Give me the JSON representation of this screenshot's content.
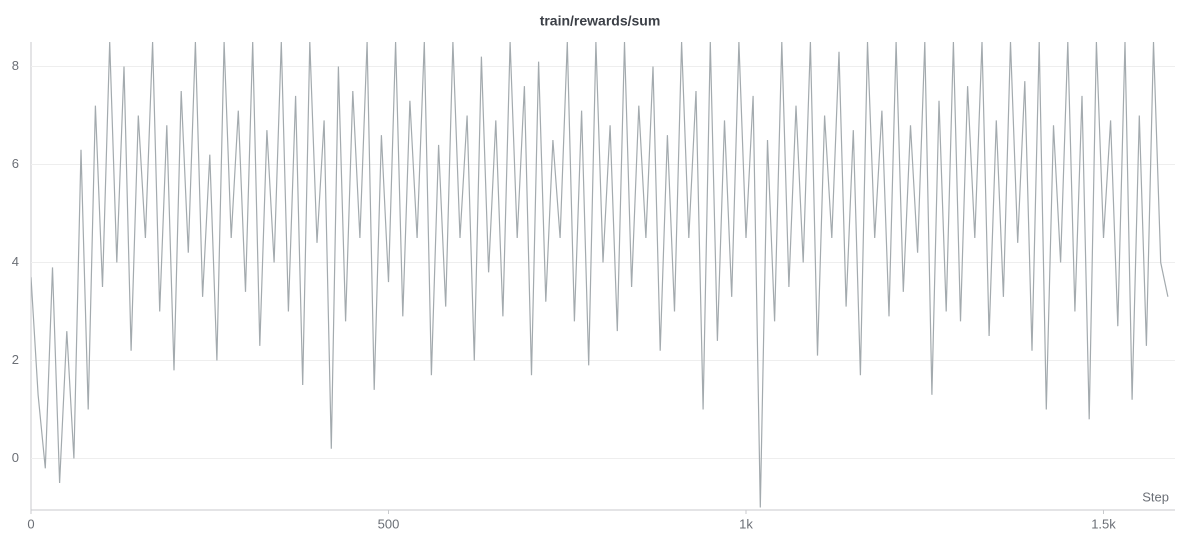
{
  "chart_data": {
    "type": "line",
    "title": "train/rewards/sum",
    "x_label": "Step",
    "x": [
      0,
      10,
      20,
      30,
      40,
      50,
      60,
      70,
      80,
      90,
      100,
      110,
      120,
      130,
      140,
      150,
      160,
      170,
      180,
      190,
      200,
      210,
      220,
      230,
      240,
      250,
      260,
      270,
      280,
      290,
      300,
      310,
      320,
      330,
      340,
      350,
      360,
      370,
      380,
      390,
      400,
      410,
      420,
      430,
      440,
      450,
      460,
      470,
      480,
      490,
      500,
      510,
      520,
      530,
      540,
      550,
      560,
      570,
      580,
      590,
      600,
      610,
      620,
      630,
      640,
      650,
      660,
      670,
      680,
      690,
      700,
      710,
      720,
      730,
      740,
      750,
      760,
      770,
      780,
      790,
      800,
      810,
      820,
      830,
      840,
      850,
      860,
      870,
      880,
      890,
      900,
      910,
      920,
      930,
      940,
      950,
      960,
      970,
      980,
      990,
      1000,
      1010,
      1020,
      1030,
      1040,
      1050,
      1060,
      1070,
      1080,
      1090,
      1100,
      1110,
      1120,
      1130,
      1140,
      1150,
      1160,
      1170,
      1180,
      1190,
      1200,
      1210,
      1220,
      1230,
      1240,
      1250,
      1260,
      1270,
      1280,
      1290,
      1300,
      1310,
      1320,
      1330,
      1340,
      1350,
      1360,
      1370,
      1380,
      1390,
      1400,
      1410,
      1420,
      1430,
      1440,
      1450,
      1460,
      1470,
      1480,
      1490,
      1500,
      1510,
      1520,
      1530,
      1540,
      1550,
      1560,
      1570,
      1580,
      1590
    ],
    "values": [
      3.7,
      1.3,
      -0.2,
      3.9,
      -0.5,
      2.6,
      0,
      6.3,
      1.0,
      7.2,
      3.5,
      8.5,
      4.0,
      8.0,
      2.2,
      7.0,
      4.5,
      8.5,
      3.0,
      6.8,
      1.8,
      7.5,
      4.2,
      8.5,
      3.3,
      6.2,
      2.0,
      8.5,
      4.5,
      7.1,
      3.4,
      8.5,
      2.3,
      6.7,
      4.0,
      8.5,
      3.0,
      7.4,
      1.5,
      8.5,
      4.4,
      6.9,
      0.2,
      8.0,
      2.8,
      7.5,
      4.5,
      8.5,
      1.4,
      6.6,
      3.6,
      8.5,
      2.9,
      7.3,
      4.5,
      8.5,
      1.7,
      6.4,
      3.1,
      8.5,
      4.5,
      7.0,
      2.0,
      8.2,
      3.8,
      6.9,
      2.9,
      8.5,
      4.5,
      7.6,
      1.7,
      8.1,
      3.2,
      6.5,
      4.5,
      8.5,
      2.8,
      7.1,
      1.9,
      8.5,
      4.0,
      6.8,
      2.6,
      8.5,
      3.5,
      7.2,
      4.5,
      8.0,
      2.2,
      6.6,
      3.0,
      8.5,
      4.5,
      7.5,
      1.0,
      8.5,
      2.4,
      6.9,
      3.3,
      8.5,
      4.5,
      7.4,
      -1.0,
      6.5,
      2.8,
      8.5,
      3.5,
      7.2,
      4.0,
      8.5,
      2.1,
      7.0,
      4.5,
      8.3,
      3.1,
      6.7,
      1.7,
      8.5,
      4.5,
      7.1,
      2.9,
      8.5,
      3.4,
      6.8,
      4.2,
      8.5,
      1.3,
      7.3,
      3.0,
      8.5,
      2.8,
      7.6,
      4.5,
      8.5,
      2.5,
      6.9,
      3.3,
      8.5,
      4.4,
      7.7,
      2.2,
      8.5,
      1.0,
      6.8,
      4.0,
      8.5,
      3.0,
      7.4,
      0.8,
      8.5,
      4.5,
      6.9,
      2.7,
      8.5,
      1.2,
      7.0,
      2.3,
      8.5,
      4.0,
      3.3
    ],
    "color": "#a3aaae",
    "xlim": [
      0,
      1600
    ],
    "ylim": [
      -1.05,
      8.5
    ],
    "xticks": [
      0,
      500,
      {
        "value": 1000,
        "label": "1k"
      },
      {
        "value": 1500,
        "label": "1.5k"
      }
    ],
    "yticks": [
      0,
      2,
      4,
      6,
      8
    ],
    "grid": true
  }
}
